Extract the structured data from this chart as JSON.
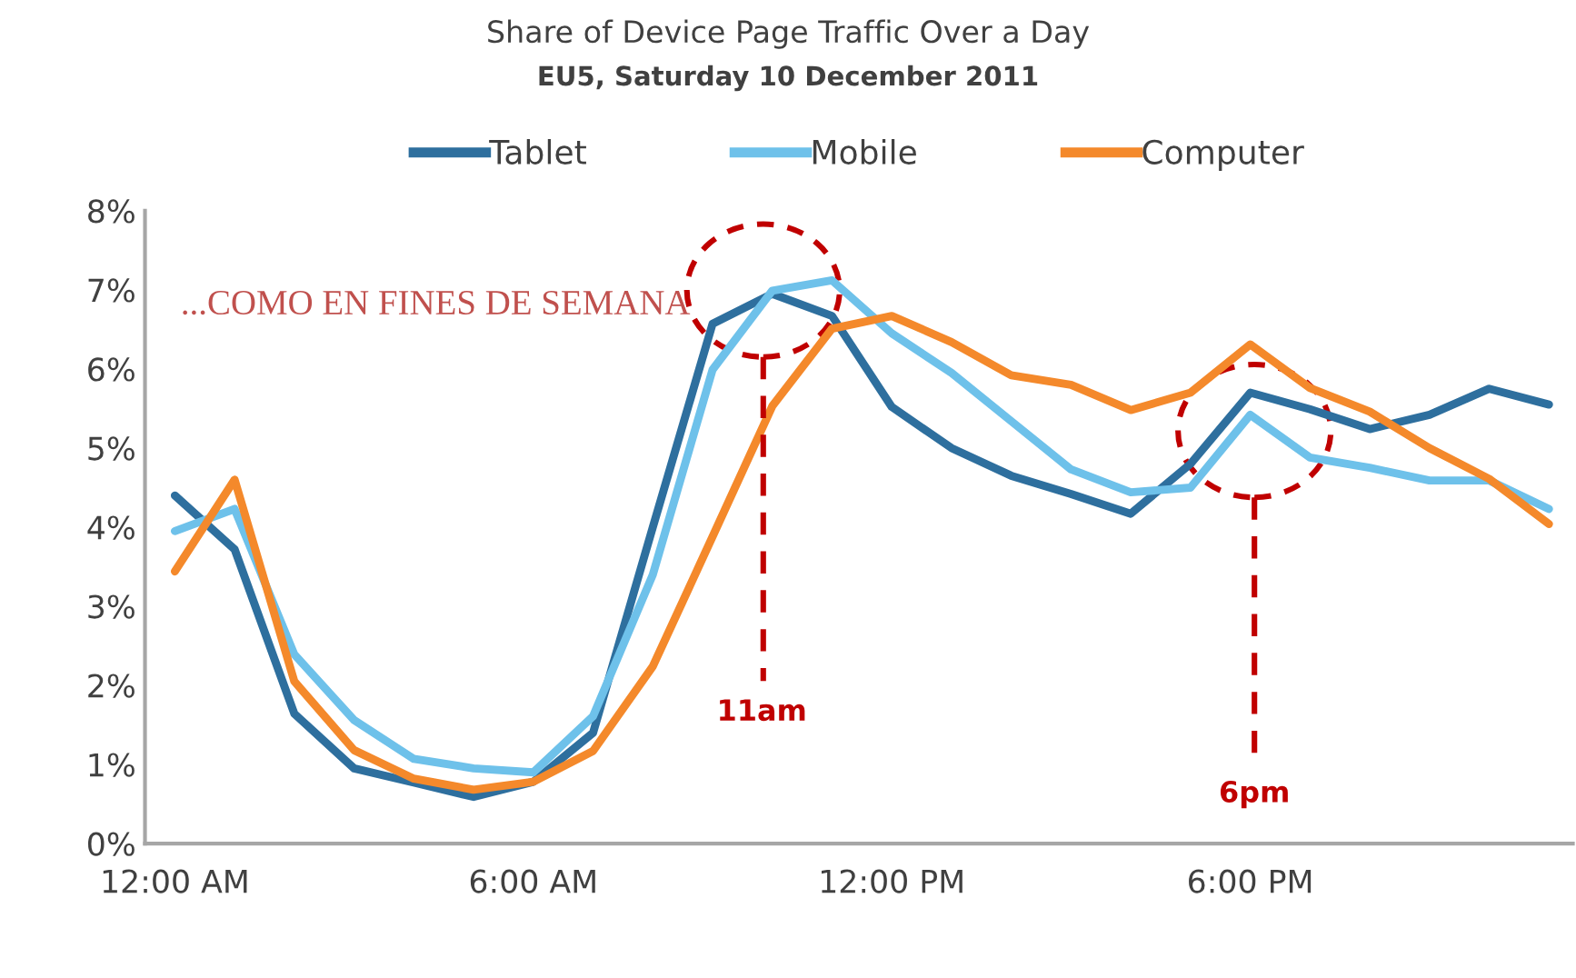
{
  "chart_data": {
    "type": "line",
    "title": "Share of Device Page Traffic Over a Day",
    "subtitle": "EU5, Saturday 10 December 2011",
    "categories": [
      "12:00 AM",
      null,
      null,
      null,
      null,
      null,
      "6:00 AM",
      null,
      null,
      null,
      null,
      null,
      "12:00 PM",
      null,
      null,
      null,
      null,
      null,
      "6:00 PM",
      null,
      null,
      null,
      null,
      null
    ],
    "ylim": [
      0,
      8
    ],
    "yticks": [
      {
        "value": 0,
        "label": "0%"
      },
      {
        "value": 1,
        "label": "1%"
      },
      {
        "value": 2,
        "label": "2%"
      },
      {
        "value": 3,
        "label": "3%"
      },
      {
        "value": 4,
        "label": "4%"
      },
      {
        "value": 5,
        "label": "5%"
      },
      {
        "value": 6,
        "label": "6%"
      },
      {
        "value": 7,
        "label": "7%"
      },
      {
        "value": 8,
        "label": "8%"
      }
    ],
    "series": [
      {
        "name": "Tablet",
        "color": "#2e6f9e",
        "values": [
          4.4,
          3.72,
          1.64,
          0.95,
          0.77,
          0.59,
          0.78,
          1.4,
          4.0,
          6.57,
          6.95,
          6.67,
          5.52,
          5.0,
          4.65,
          4.42,
          4.17,
          4.8,
          5.7,
          5.49,
          5.24,
          5.42,
          5.75,
          5.55
        ]
      },
      {
        "name": "Mobile",
        "color": "#6ec1ea",
        "values": [
          3.95,
          4.23,
          2.39,
          1.56,
          1.07,
          0.95,
          0.9,
          1.61,
          3.4,
          5.99,
          6.99,
          7.12,
          6.45,
          5.95,
          5.34,
          4.73,
          4.44,
          4.5,
          5.42,
          4.88,
          4.75,
          4.59,
          4.59,
          4.23
        ]
      },
      {
        "name": "Computer",
        "color": "#f4892b",
        "values": [
          3.44,
          4.6,
          2.05,
          1.18,
          0.82,
          0.68,
          0.78,
          1.17,
          2.24,
          3.88,
          5.53,
          6.51,
          6.67,
          6.34,
          5.92,
          5.8,
          5.48,
          5.7,
          6.31,
          5.76,
          5.46,
          5.0,
          4.61,
          4.04
        ]
      }
    ],
    "annotations": [
      "...COMO EN FINES DE SEMANA",
      "11am",
      "6pm"
    ],
    "legend": "top",
    "grid": false,
    "marker": "none",
    "line_style": "solid"
  }
}
